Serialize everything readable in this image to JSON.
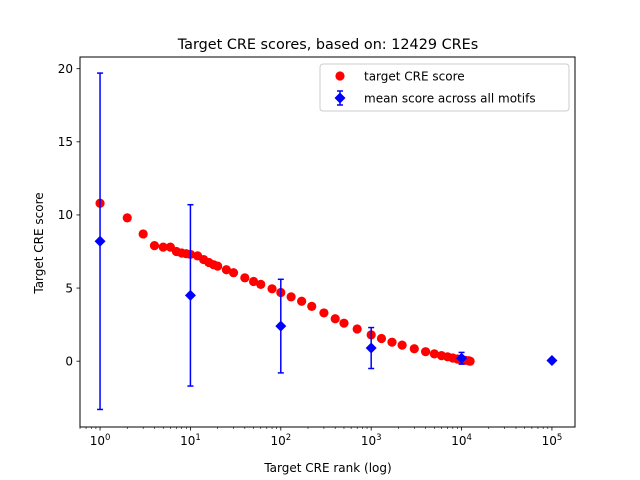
{
  "chart_data": {
    "type": "scatter",
    "title": "Target CRE scores, based on: 12429 CREs",
    "xlabel": "Target CRE rank (log)",
    "ylabel": "Target CRE score",
    "x_scale": "log",
    "xlim": [
      0.6,
      180000
    ],
    "ylim": [
      -4.5,
      20.8
    ],
    "x_ticks": [
      {
        "value": 1,
        "base": "10",
        "exp": "0"
      },
      {
        "value": 10,
        "base": "10",
        "exp": "1"
      },
      {
        "value": 100,
        "base": "10",
        "exp": "2"
      },
      {
        "value": 1000,
        "base": "10",
        "exp": "3"
      },
      {
        "value": 10000,
        "base": "10",
        "exp": "4"
      },
      {
        "value": 100000,
        "base": "10",
        "exp": "5"
      }
    ],
    "y_ticks": [
      {
        "value": 0,
        "label": "0"
      },
      {
        "value": 5,
        "label": "5"
      },
      {
        "value": 10,
        "label": "10"
      },
      {
        "value": 15,
        "label": "15"
      },
      {
        "value": 20,
        "label": "20"
      }
    ],
    "grid": false,
    "legend_position": "top-right",
    "series": [
      {
        "name": "target CRE score",
        "kind": "scatter",
        "marker": "circle",
        "color": "#ff0000",
        "x": [
          1,
          2,
          3,
          4,
          5,
          6,
          7,
          8,
          9,
          10,
          12,
          14,
          16,
          18,
          20,
          25,
          30,
          40,
          50,
          60,
          80,
          100,
          130,
          170,
          220,
          300,
          400,
          500,
          700,
          1000,
          1300,
          1700,
          2200,
          3000,
          4000,
          5000,
          6000,
          7000,
          8000,
          9000,
          10000,
          11000,
          12000,
          12429
        ],
        "y": [
          10.8,
          9.8,
          8.7,
          7.9,
          7.8,
          7.8,
          7.5,
          7.4,
          7.35,
          7.3,
          7.2,
          6.95,
          6.75,
          6.6,
          6.5,
          6.25,
          6.05,
          5.7,
          5.45,
          5.25,
          4.95,
          4.7,
          4.4,
          4.1,
          3.75,
          3.3,
          2.9,
          2.6,
          2.2,
          1.8,
          1.55,
          1.3,
          1.1,
          0.85,
          0.65,
          0.5,
          0.38,
          0.3,
          0.22,
          0.15,
          0.1,
          0.06,
          0.03,
          0.0
        ]
      },
      {
        "name": "mean score across all motifs",
        "kind": "errorbar",
        "marker": "diamond",
        "color": "#0000ff",
        "x": [
          1,
          10,
          100,
          1000,
          10000,
          100000
        ],
        "y": [
          8.2,
          4.5,
          2.4,
          0.9,
          0.2,
          0.05
        ],
        "error": [
          11.5,
          6.2,
          3.2,
          1.4,
          0.4,
          0.0
        ]
      }
    ]
  }
}
